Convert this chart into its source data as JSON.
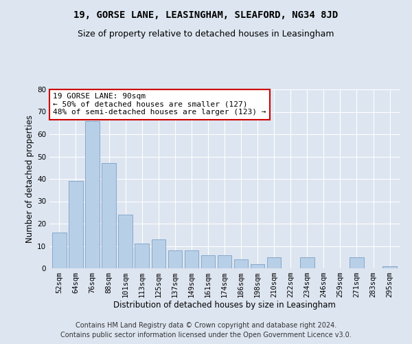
{
  "title1": "19, GORSE LANE, LEASINGHAM, SLEAFORD, NG34 8JD",
  "title2": "Size of property relative to detached houses in Leasingham",
  "xlabel": "Distribution of detached houses by size in Leasingham",
  "ylabel": "Number of detached properties",
  "categories": [
    "52sqm",
    "64sqm",
    "76sqm",
    "88sqm",
    "101sqm",
    "113sqm",
    "125sqm",
    "137sqm",
    "149sqm",
    "161sqm",
    "174sqm",
    "186sqm",
    "198sqm",
    "210sqm",
    "222sqm",
    "234sqm",
    "246sqm",
    "259sqm",
    "271sqm",
    "283sqm",
    "295sqm"
  ],
  "values": [
    16,
    39,
    66,
    47,
    24,
    11,
    13,
    8,
    8,
    6,
    6,
    4,
    2,
    5,
    0,
    5,
    0,
    0,
    5,
    0,
    1
  ],
  "bar_color": "#b8cfe8",
  "bar_edge_color": "#7aa0c4",
  "annotation_text": "19 GORSE LANE: 90sqm\n← 50% of detached houses are smaller (127)\n48% of semi-detached houses are larger (123) →",
  "annotation_box_facecolor": "#ffffff",
  "annotation_box_edgecolor": "#cc0000",
  "ylim": [
    0,
    80
  ],
  "yticks": [
    0,
    10,
    20,
    30,
    40,
    50,
    60,
    70,
    80
  ],
  "background_color": "#dde5f0",
  "plot_bg_color": "#dde5f0",
  "footer_line1": "Contains HM Land Registry data © Crown copyright and database right 2024.",
  "footer_line2": "Contains public sector information licensed under the Open Government Licence v3.0.",
  "title1_fontsize": 10,
  "title2_fontsize": 9,
  "xlabel_fontsize": 8.5,
  "ylabel_fontsize": 8.5,
  "tick_fontsize": 7.5,
  "annotation_fontsize": 8,
  "footer_fontsize": 7
}
